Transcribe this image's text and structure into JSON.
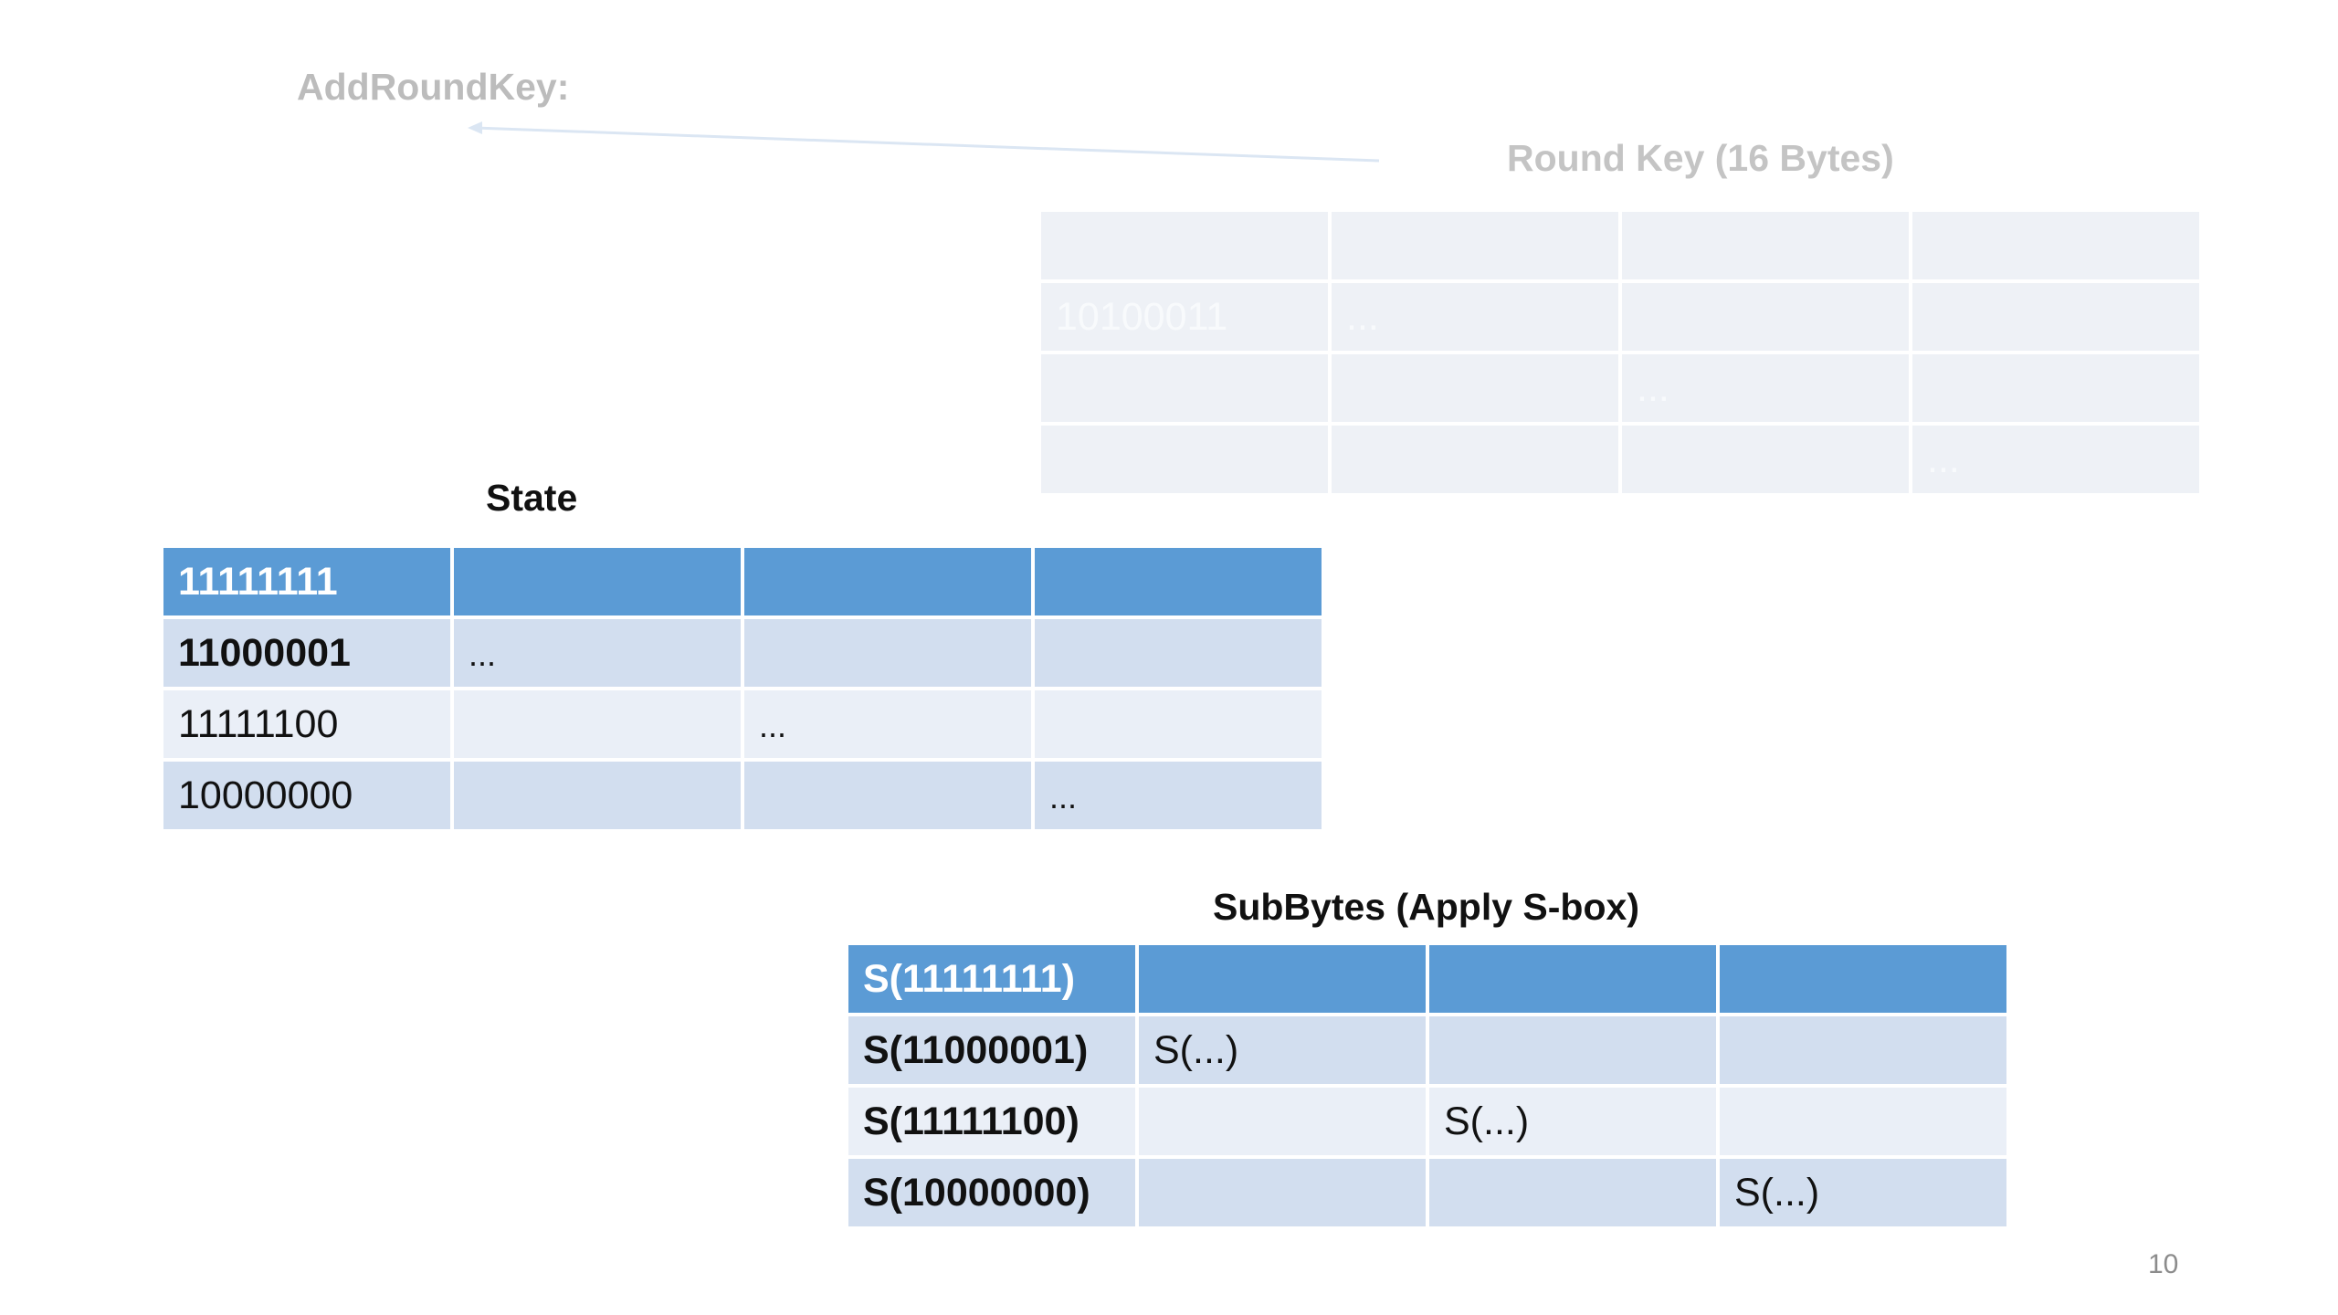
{
  "slide": {
    "title": "AddRoundKey:",
    "page_number": "10"
  },
  "round_key": {
    "title": "Round Key (16 Bytes)",
    "rows": [
      [
        "",
        "",
        "",
        ""
      ],
      [
        "10100011",
        "...",
        "",
        ""
      ],
      [
        "",
        "",
        "...",
        ""
      ],
      [
        "",
        "",
        "",
        "..."
      ]
    ]
  },
  "state": {
    "title": "State",
    "rows": [
      [
        "11111111",
        "",
        "",
        ""
      ],
      [
        "11000001",
        "...",
        "",
        ""
      ],
      [
        "11111100",
        "",
        "...",
        ""
      ],
      [
        "10000000",
        "",
        "",
        "..."
      ]
    ]
  },
  "subbytes": {
    "title": "SubBytes (Apply S-box)",
    "rows": [
      [
        "S(11111111)",
        "",
        "",
        ""
      ],
      [
        "S(11000001)",
        "S(...)",
        "",
        ""
      ],
      [
        "S(11111100)",
        "",
        "S(...)",
        ""
      ],
      [
        "S(10000000)",
        "",
        "",
        "S(...)"
      ]
    ]
  },
  "colors": {
    "header_blue": "#5b9bd5",
    "row_dark": "#d2deef",
    "row_light": "#eaeff7",
    "faded": "#eef1f6"
  }
}
